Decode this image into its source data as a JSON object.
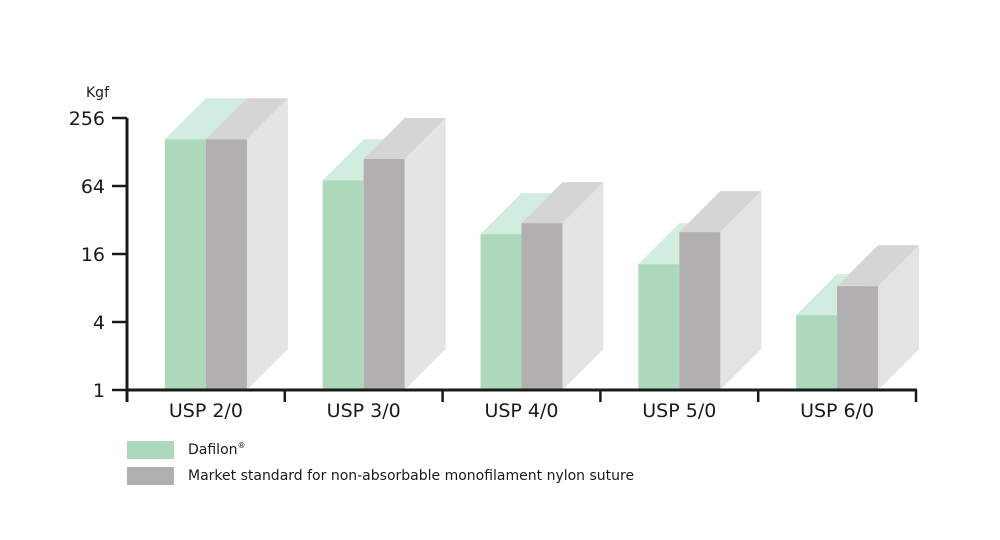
{
  "chart_data": {
    "type": "bar",
    "y_unit_label": "Kgf",
    "y_scale": "log2",
    "ylim": [
      1,
      256
    ],
    "y_ticks": [
      "1",
      "4",
      "16",
      "64",
      "256"
    ],
    "categories": [
      "USP 2/0",
      "USP 3/0",
      "USP 4/0",
      "USP 5/0",
      "USP 6/0"
    ],
    "series": [
      {
        "name": "Dafilon",
        "name_mark": "®",
        "color": "#acd8bc",
        "values": [
          166,
          72,
          24,
          13,
          4.6
        ]
      },
      {
        "name": "Market standard for non-absorbable monofilament nylon suture",
        "color": "#b1afaf",
        "values": [
          166,
          111,
          30,
          25,
          8.3
        ]
      }
    ],
    "legend_position": "bottom-left",
    "grid": false
  }
}
